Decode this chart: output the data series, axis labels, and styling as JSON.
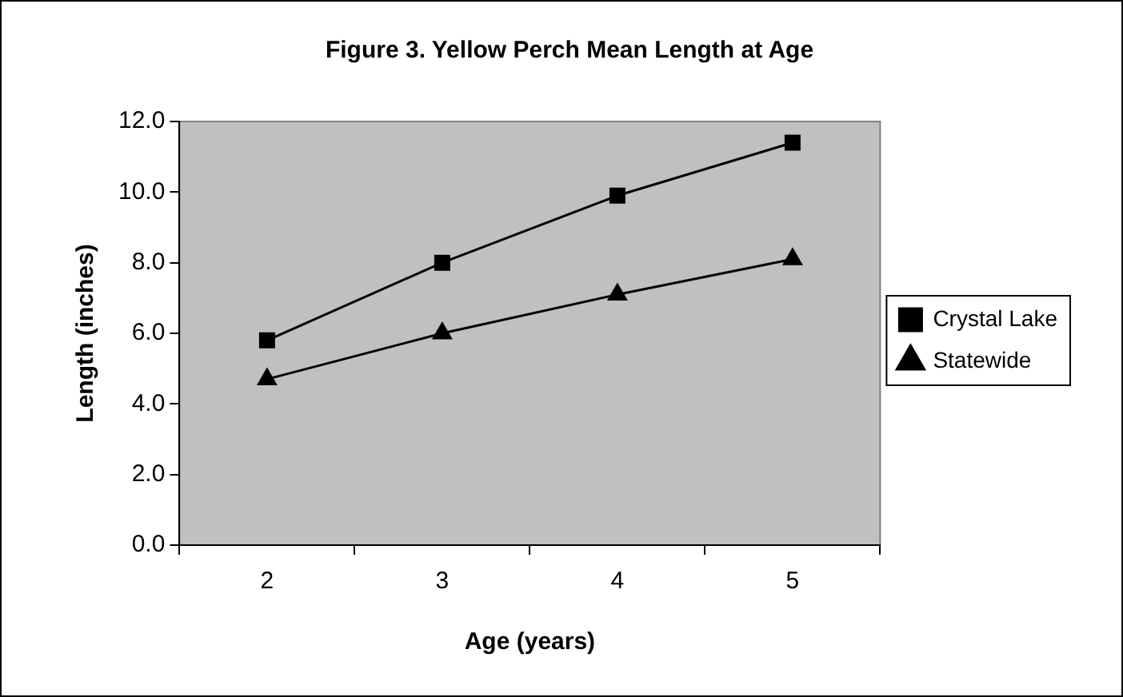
{
  "chart_data": {
    "type": "line",
    "title": "Figure 3. Yellow Perch Mean Length at Age",
    "xlabel": "Age (years)",
    "ylabel": "Length (inches)",
    "categories": [
      "2",
      "3",
      "4",
      "5"
    ],
    "series": [
      {
        "name": "Crystal Lake",
        "color": "#000000",
        "marker": "square",
        "values": [
          5.8,
          8.0,
          9.9,
          11.4
        ]
      },
      {
        "name": "Statewide",
        "color": "#000000",
        "marker": "triangle",
        "values": [
          4.7,
          6.0,
          7.1,
          8.1
        ]
      }
    ],
    "ylim": [
      0,
      12
    ],
    "yticks": [
      {
        "value": 0,
        "label": "0.0"
      },
      {
        "value": 2,
        "label": "2.0"
      },
      {
        "value": 4,
        "label": "4.0"
      },
      {
        "value": 6,
        "label": "6.0"
      },
      {
        "value": 8,
        "label": "8.0"
      },
      {
        "value": 10,
        "label": "10.0"
      },
      {
        "value": 12,
        "label": "12.0"
      }
    ],
    "legend": "right",
    "line_style": "solid"
  }
}
